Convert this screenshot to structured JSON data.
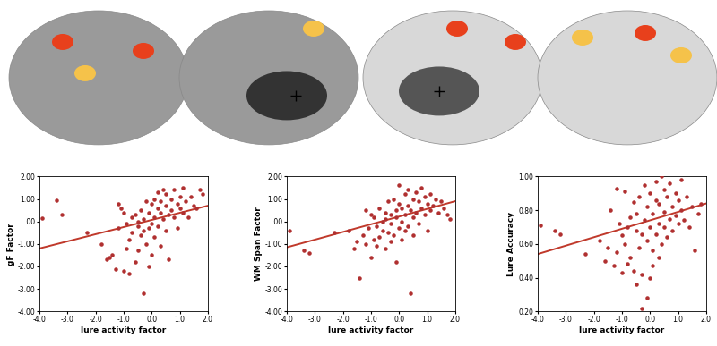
{
  "chart_data": [
    {
      "type": "scatter",
      "x_label": "lure activity factor",
      "y_label": "gF Factor",
      "xlim": [
        -4,
        2
      ],
      "ylim": [
        -4,
        2
      ],
      "grid": false,
      "xticks": [
        {
          "value": -4,
          "label": "-4.0"
        },
        {
          "value": -3,
          "label": "-3.0"
        },
        {
          "value": -2,
          "label": "-2.0"
        },
        {
          "value": -1,
          "label": "-1.0"
        },
        {
          "value": 0,
          "label": "0.0"
        },
        {
          "value": 1,
          "label": "1.0"
        },
        {
          "value": 2,
          "label": "2.0"
        }
      ],
      "yticks": [
        {
          "value": -4,
          "label": "-4.00"
        },
        {
          "value": -3,
          "label": "-3.00"
        },
        {
          "value": -2,
          "label": "-2.00"
        },
        {
          "value": -1,
          "label": "-1.00"
        },
        {
          "value": 0,
          "label": ".00"
        },
        {
          "value": 1,
          "label": "1.00"
        },
        {
          "value": 2,
          "label": "2.00"
        }
      ],
      "series": [
        {
          "type": "scatter",
          "color": "#b03030",
          "marker": "o",
          "x": [
            -3.9,
            -3.4,
            -3.2,
            -2.3,
            -1.8,
            -1.6,
            -1.5,
            -1.4,
            -1.3,
            -1.2,
            -1.2,
            -1.1,
            -1.0,
            -1.0,
            -0.9,
            -0.9,
            -0.8,
            -0.8,
            -0.7,
            -0.7,
            -0.6,
            -0.6,
            -0.5,
            -0.5,
            -0.5,
            -0.4,
            -0.4,
            -0.3,
            -0.3,
            -0.3,
            -0.2,
            -0.2,
            -0.1,
            -0.1,
            -0.1,
            0.0,
            0.0,
            0.0,
            0.1,
            0.1,
            0.1,
            0.2,
            0.2,
            0.2,
            0.3,
            0.3,
            0.3,
            0.4,
            0.4,
            0.5,
            0.5,
            0.5,
            0.6,
            0.6,
            0.7,
            0.7,
            0.8,
            0.8,
            0.9,
            0.9,
            1.0,
            1.0,
            1.1,
            1.1,
            1.2,
            1.3,
            1.4,
            1.5,
            1.6,
            1.7,
            1.8
          ],
          "values": [
            0.15,
            0.95,
            0.3,
            -0.5,
            -1.0,
            -1.7,
            -1.6,
            -1.5,
            -2.1,
            0.8,
            -0.3,
            0.6,
            -2.2,
            0.4,
            -1.2,
            -0.1,
            -0.8,
            -2.3,
            0.2,
            -0.5,
            -1.8,
            0.3,
            -0.2,
            -1.3,
            0.0,
            -0.6,
            0.5,
            -3.2,
            -0.4,
            0.1,
            0.9,
            -1.0,
            -0.3,
            0.4,
            -2.0,
            -0.1,
            0.8,
            -1.5,
            0.2,
            1.0,
            -0.7,
            0.6,
            -0.2,
            1.3,
            0.4,
            -1.1,
            0.9,
            1.4,
            0.1,
            0.7,
            -0.4,
            1.2,
            0.3,
            -1.7,
            1.0,
            0.5,
            1.4,
            0.2,
            0.8,
            -0.3,
            1.1,
            0.6,
            1.5,
            0.4,
            0.9,
            0.2,
            1.1,
            0.7,
            0.6,
            1.4,
            1.2
          ]
        },
        {
          "type": "line",
          "color": "#c0392b",
          "line_style": "solid",
          "x": [
            -4,
            2
          ],
          "values": [
            -1.2,
            0.7
          ]
        }
      ]
    },
    {
      "type": "scatter",
      "x_label": "lure activity factor",
      "y_label": "WM Span Factor",
      "xlim": [
        -4,
        2
      ],
      "ylim": [
        -4,
        2
      ],
      "grid": false,
      "xticks": [
        {
          "value": -4,
          "label": "-4.0"
        },
        {
          "value": -3,
          "label": "-3.0"
        },
        {
          "value": -2,
          "label": "-2.0"
        },
        {
          "value": -1,
          "label": "-1.0"
        },
        {
          "value": 0,
          "label": "0.0"
        },
        {
          "value": 1,
          "label": "1.0"
        },
        {
          "value": 2,
          "label": "2.0"
        }
      ],
      "yticks": [
        {
          "value": -4,
          "label": "-4.00"
        },
        {
          "value": -3,
          "label": "-3.00"
        },
        {
          "value": -2,
          "label": "-2.00"
        },
        {
          "value": -1,
          "label": "-1.00"
        },
        {
          "value": 0,
          "label": ".00"
        },
        {
          "value": 1,
          "label": "1.00"
        },
        {
          "value": 2,
          "label": "2.00"
        }
      ],
      "series": [
        {
          "type": "scatter",
          "color": "#b03030",
          "marker": "o",
          "x": [
            -3.9,
            -3.4,
            -3.2,
            -2.3,
            -1.8,
            -1.6,
            -1.5,
            -1.4,
            -1.3,
            -1.2,
            -1.2,
            -1.1,
            -1.0,
            -1.0,
            -0.9,
            -0.9,
            -0.8,
            -0.8,
            -0.7,
            -0.7,
            -0.6,
            -0.6,
            -0.5,
            -0.5,
            -0.5,
            -0.4,
            -0.4,
            -0.3,
            -0.3,
            -0.3,
            -0.2,
            -0.2,
            -0.1,
            -0.1,
            -0.1,
            0.0,
            0.0,
            0.0,
            0.1,
            0.1,
            0.1,
            0.2,
            0.2,
            0.2,
            0.3,
            0.3,
            0.3,
            0.4,
            0.4,
            0.5,
            0.5,
            0.5,
            0.6,
            0.6,
            0.7,
            0.7,
            0.8,
            0.8,
            0.9,
            0.9,
            1.0,
            1.0,
            1.1,
            1.1,
            1.2,
            1.3,
            1.4,
            1.5,
            1.6,
            1.7,
            1.8
          ],
          "values": [
            -0.4,
            -1.3,
            -1.4,
            -0.5,
            -0.4,
            -1.2,
            -0.9,
            -2.5,
            -0.6,
            0.5,
            -1.0,
            -0.3,
            0.3,
            -1.6,
            -0.8,
            0.2,
            -0.2,
            -1.1,
            0.6,
            -0.7,
            0.0,
            -0.4,
            0.4,
            -1.2,
            0.1,
            -0.5,
            0.9,
            -0.9,
            0.3,
            -0.1,
            1.0,
            -0.6,
            0.5,
            -1.8,
            0.2,
            0.8,
            -0.3,
            1.6,
            0.0,
            0.6,
            -0.8,
            1.2,
            0.3,
            -0.4,
            0.7,
            1.4,
            -0.2,
            0.5,
            -3.2,
            1.0,
            0.2,
            -0.6,
            1.3,
            0.4,
            0.9,
            -0.1,
            1.5,
            0.6,
            0.3,
            1.1,
            0.8,
            -0.4,
            1.2,
            0.5,
            0.7,
            1.0,
            0.4,
            0.9,
            0.6,
            0.3,
            0.1
          ]
        },
        {
          "type": "line",
          "color": "#c0392b",
          "line_style": "solid",
          "x": [
            -4,
            2
          ],
          "values": [
            -1.15,
            0.9
          ]
        }
      ]
    },
    {
      "type": "scatter",
      "x_label": "lure activity factor",
      "y_label": "Lure Accuracy",
      "xlim": [
        -4,
        2
      ],
      "ylim": [
        0.2,
        1.0
      ],
      "grid": false,
      "xticks": [
        {
          "value": -4,
          "label": "-4.0"
        },
        {
          "value": -3,
          "label": "-3.0"
        },
        {
          "value": -2,
          "label": "-2.0"
        },
        {
          "value": -1,
          "label": "-1.0"
        },
        {
          "value": 0,
          "label": "0.0"
        },
        {
          "value": 1,
          "label": "1.0"
        },
        {
          "value": 2,
          "label": "2.0"
        }
      ],
      "yticks": [
        {
          "value": 0.2,
          "label": "0.20"
        },
        {
          "value": 0.4,
          "label": "0.40"
        },
        {
          "value": 0.6,
          "label": "0.60"
        },
        {
          "value": 0.8,
          "label": "0.80"
        },
        {
          "value": 1.0,
          "label": "1.00"
        }
      ],
      "series": [
        {
          "type": "scatter",
          "color": "#b03030",
          "marker": "o",
          "x": [
            -3.9,
            -3.4,
            -3.2,
            -2.3,
            -1.8,
            -1.6,
            -1.5,
            -1.4,
            -1.3,
            -1.2,
            -1.2,
            -1.1,
            -1.0,
            -1.0,
            -0.9,
            -0.9,
            -0.8,
            -0.8,
            -0.7,
            -0.7,
            -0.6,
            -0.6,
            -0.5,
            -0.5,
            -0.5,
            -0.4,
            -0.4,
            -0.3,
            -0.3,
            -0.3,
            -0.2,
            -0.2,
            -0.1,
            -0.1,
            -0.1,
            0.0,
            0.0,
            0.0,
            0.1,
            0.1,
            0.1,
            0.2,
            0.2,
            0.2,
            0.3,
            0.3,
            0.3,
            0.4,
            0.4,
            0.5,
            0.5,
            0.5,
            0.6,
            0.6,
            0.7,
            0.7,
            0.8,
            0.8,
            0.9,
            0.9,
            1.0,
            1.0,
            1.1,
            1.1,
            1.2,
            1.3,
            1.4,
            1.5,
            1.6,
            1.7,
            1.8
          ],
          "values": [
            0.71,
            0.68,
            0.66,
            0.54,
            0.62,
            0.5,
            0.58,
            0.8,
            0.47,
            0.93,
            0.55,
            0.72,
            0.43,
            0.65,
            0.6,
            0.91,
            0.48,
            0.7,
            0.76,
            0.52,
            0.85,
            0.44,
            0.68,
            0.36,
            0.78,
            0.58,
            0.88,
            0.42,
            0.66,
            0.22,
            0.95,
            0.74,
            0.28,
            0.62,
            0.82,
            0.4,
            0.7,
            0.9,
            0.56,
            0.78,
            0.47,
            0.86,
            0.66,
            0.97,
            0.72,
            0.52,
            0.84,
            1.0,
            0.6,
            0.79,
            0.7,
            0.92,
            0.64,
            0.88,
            0.75,
            0.96,
            0.82,
            0.68,
            0.9,
            0.77,
            0.86,
            0.72,
            0.98,
            0.8,
            0.74,
            0.88,
            0.7,
            0.82,
            0.56,
            0.78,
            0.84
          ]
        },
        {
          "type": "line",
          "color": "#c0392b",
          "line_style": "solid",
          "x": [
            -4,
            2
          ],
          "values": [
            0.54,
            0.84
          ]
        }
      ]
    }
  ]
}
